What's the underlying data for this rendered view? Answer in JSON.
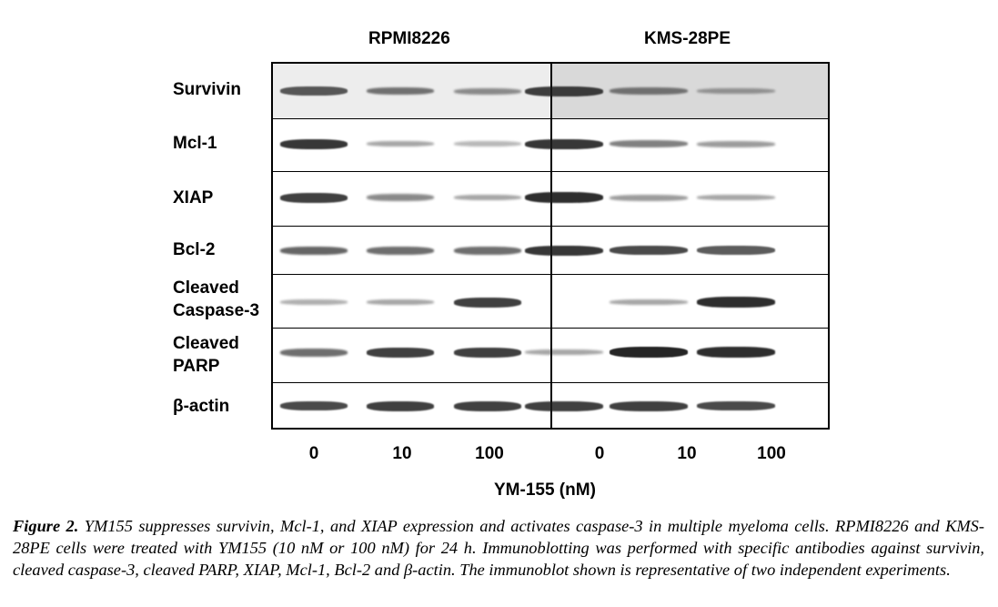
{
  "cell_lines": [
    "RPMI8226",
    "KMS-28PE"
  ],
  "proteins": [
    "Survivin",
    "Mcl-1",
    "XIAP",
    "Bcl-2",
    "Cleaved\nCaspase-3",
    "Cleaved\nPARP",
    "β-actin"
  ],
  "doses": [
    "0",
    "10",
    "100",
    "0",
    "10",
    "100"
  ],
  "x_axis_title": "YM-155 (nM)",
  "caption": {
    "label": "Figure 2.",
    "text": " YM155 suppresses survivin, Mcl-1, and XIAP expression and activates caspase-3 in multiple myeloma cells. RPMI8226 and KMS-28PE cells were treated with YM155 (10 nM or 100 nM) for 24 h. Immunoblotting was performed with specific antibodies against survivin, cleaved caspase-3, cleaved PARP, XIAP, Mcl-1, Bcl-2 and β-actin. The immunoblot shown is representative of two independent experiments."
  },
  "band_intensity": {
    "RPMI8226": [
      [
        0.7,
        0.55,
        0.4
      ],
      [
        0.9,
        0.3,
        0.2
      ],
      [
        0.85,
        0.45,
        0.3
      ],
      [
        0.65,
        0.6,
        0.6
      ],
      [
        0.25,
        0.3,
        0.85
      ],
      [
        0.6,
        0.85,
        0.85
      ],
      [
        0.8,
        0.85,
        0.85
      ]
    ],
    "KMS-28PE": [
      [
        0.85,
        0.5,
        0.3
      ],
      [
        0.9,
        0.5,
        0.35
      ],
      [
        0.95,
        0.35,
        0.3
      ],
      [
        0.9,
        0.8,
        0.7
      ],
      [
        0.0,
        0.3,
        0.95
      ],
      [
        0.3,
        1.0,
        0.95
      ],
      [
        0.85,
        0.85,
        0.8
      ]
    ]
  },
  "colors": {
    "frame": "#000000",
    "band": "#1a1a1a",
    "survivin_bg_left": "#ededed",
    "survivin_bg_right": "#d9d9d9"
  }
}
